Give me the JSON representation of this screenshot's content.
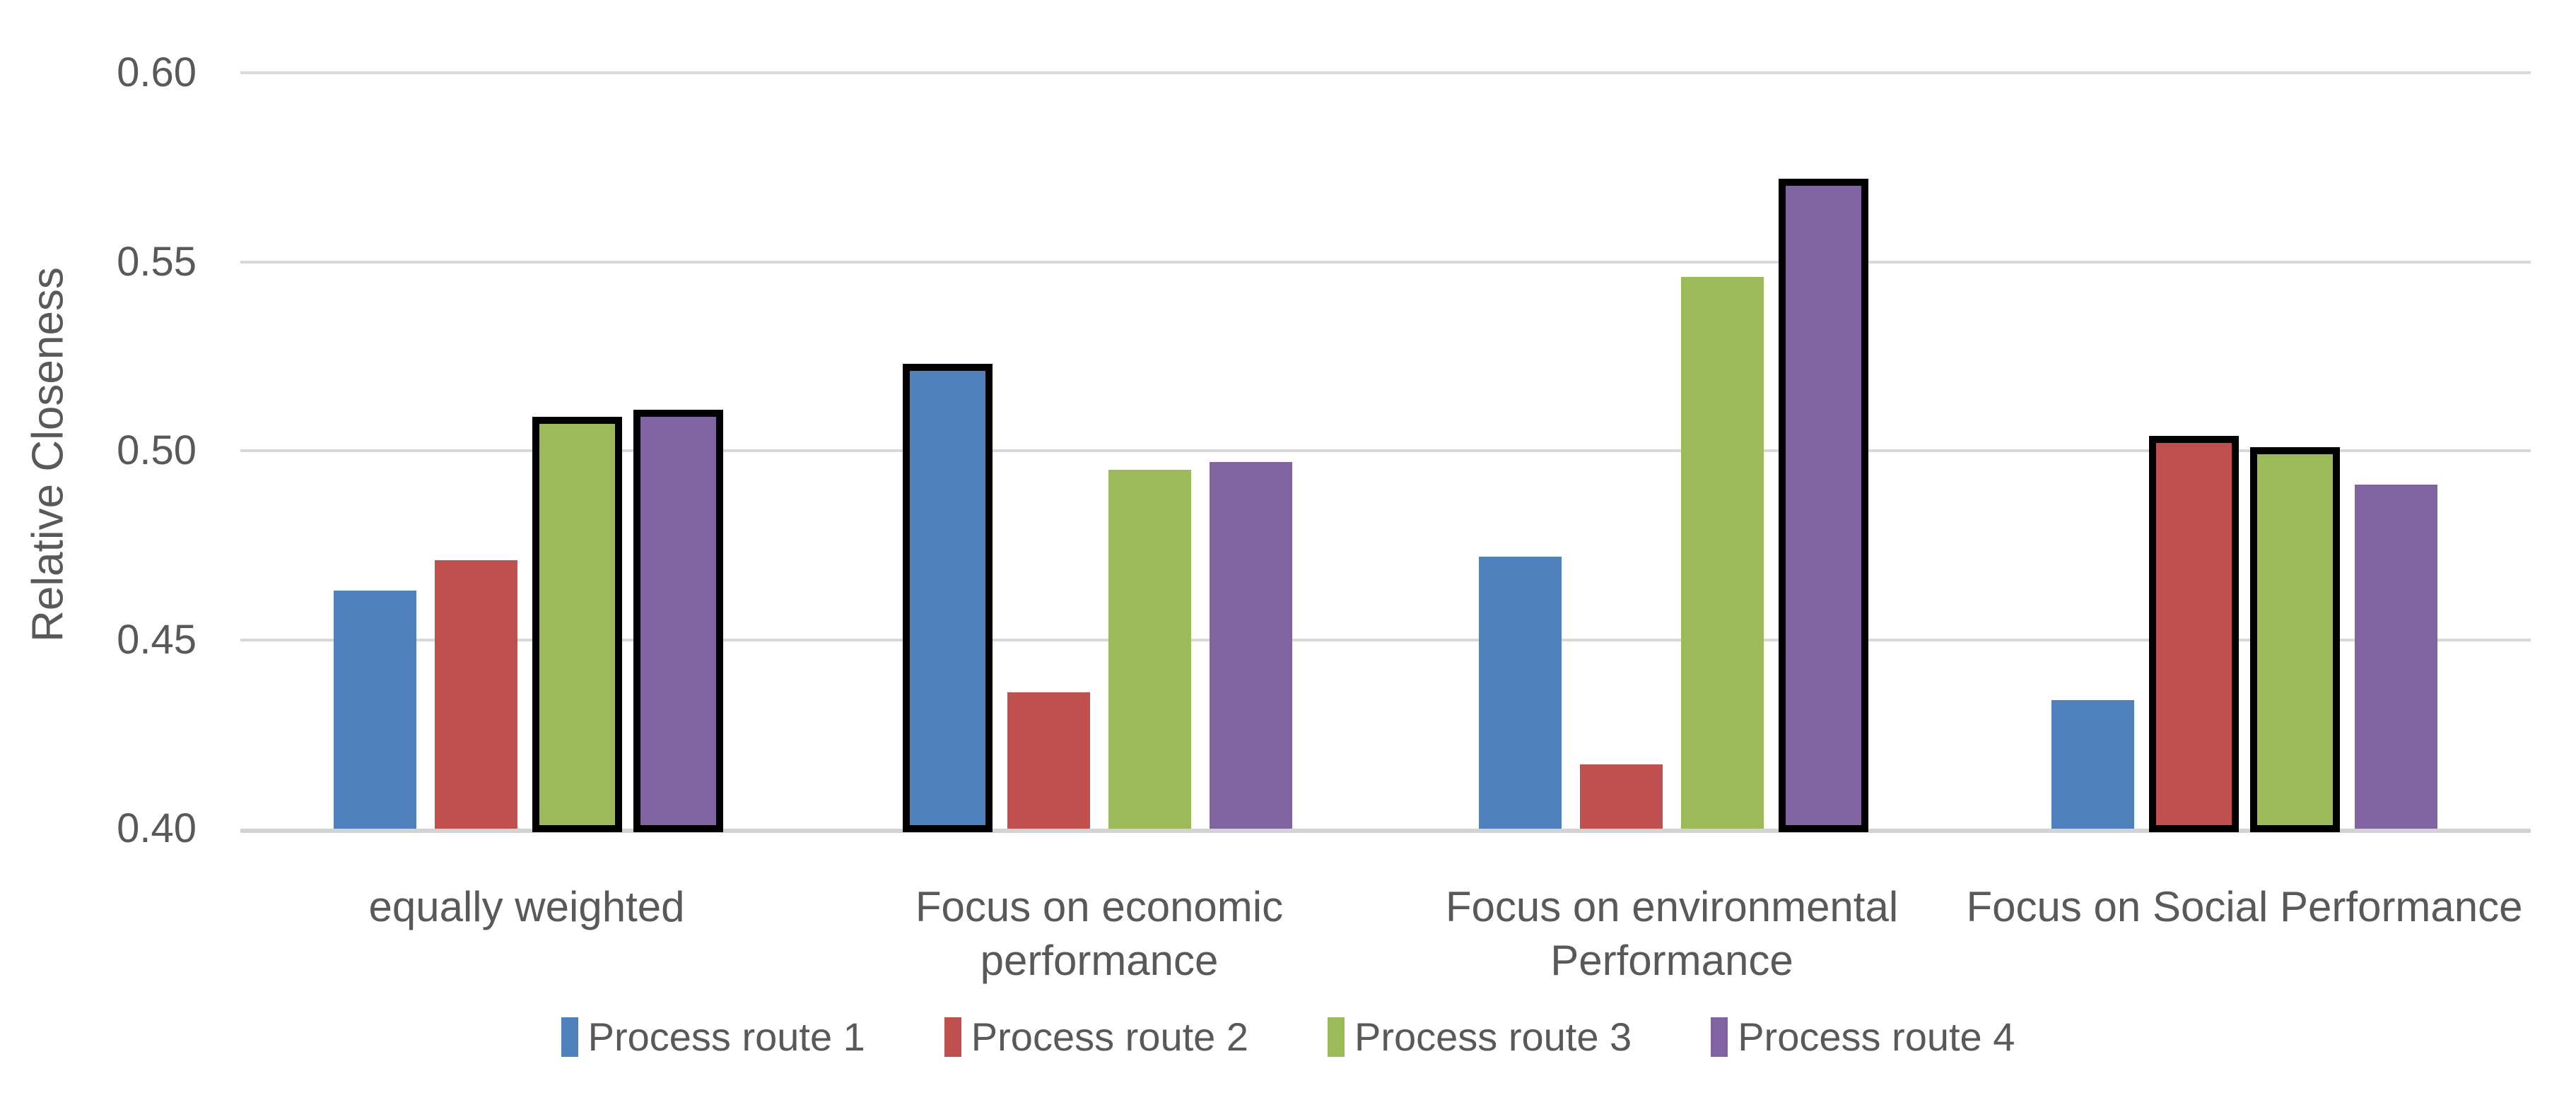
{
  "chart_data": {
    "type": "bar",
    "title": "",
    "ylabel": "Relative Closeness",
    "xlabel": "",
    "ylim": [
      0.4,
      0.6
    ],
    "yticks": [
      0.4,
      0.45,
      0.5,
      0.55,
      0.6
    ],
    "ytick_decimals": 2,
    "grid": "horizontal",
    "legend_position": "bottom",
    "categories": [
      "equally weighted",
      "Focus on economic performance",
      "Focus on environmental Performance",
      "Focus on Social Performance"
    ],
    "category_label_lines": [
      [
        "equally weighted"
      ],
      [
        "Focus on economic",
        "performance"
      ],
      [
        "Focus on environmental",
        "Performance"
      ],
      [
        "Focus on Social Performance"
      ]
    ],
    "series": [
      {
        "name": "Process route 1",
        "color": "#4F81BD",
        "values": [
          0.463,
          0.522,
          0.472,
          0.434
        ],
        "highlighted": [
          false,
          true,
          false,
          false
        ]
      },
      {
        "name": "Process route 2",
        "color": "#C0504D",
        "values": [
          0.471,
          0.436,
          0.417,
          0.503
        ],
        "highlighted": [
          false,
          false,
          false,
          true
        ]
      },
      {
        "name": "Process route 3",
        "color": "#9BBB59",
        "values": [
          0.508,
          0.495,
          0.546,
          0.5
        ],
        "highlighted": [
          true,
          false,
          false,
          true
        ]
      },
      {
        "name": "Process route 4",
        "color": "#8064A2",
        "values": [
          0.51,
          0.497,
          0.571,
          0.491
        ],
        "highlighted": [
          true,
          false,
          true,
          false
        ]
      }
    ],
    "highlight_style": "thick black border"
  },
  "colors": {
    "background": "#FFFFFF",
    "gridline": "#D9D9D9",
    "axis_line": "#D3D3D3",
    "tick_text": "#595959",
    "category_text": "#595959",
    "axis_title_text": "#595959",
    "legend_text": "#595959",
    "highlight_border": "#000000"
  }
}
